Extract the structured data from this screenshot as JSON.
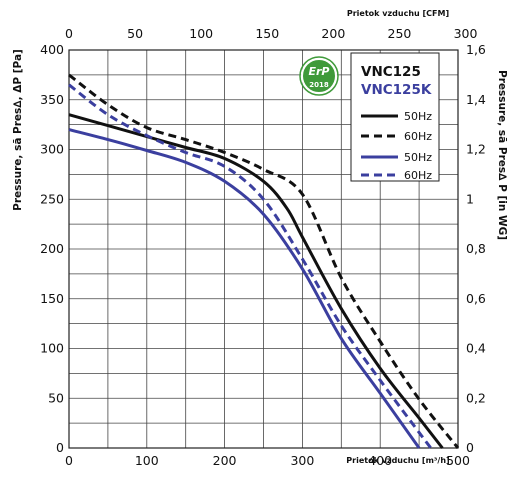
{
  "chart_data": {
    "type": "line",
    "title": "",
    "xlabel": "Prietok vzduchu [m³/h]",
    "xlabel_top": "Prietok vzduchu [CFM]",
    "ylabel_left": "Pressure, sā Pres∆, ΔP [Pa]",
    "ylabel_right": "Pressure, sā Pres∆ P [in WG]",
    "xlim": [
      0,
      500
    ],
    "ylim": [
      0,
      400
    ],
    "xticks": [
      "0",
      "100",
      "200",
      "300",
      "400",
      "500"
    ],
    "xticks_top": [
      "0",
      "50",
      "100",
      "150",
      "200",
      "250",
      "300"
    ],
    "yticks": [
      "0",
      "50",
      "100",
      "150",
      "200",
      "250",
      "300",
      "350",
      "400"
    ],
    "yticks_right": [
      "0",
      "0,2",
      "0,4",
      "0,6",
      "0,8",
      "1",
      "1,2",
      "1,4",
      "1,6"
    ],
    "grid": true,
    "models": [
      "VNC125",
      "VNC125K"
    ],
    "badge": {
      "line1": "ErP",
      "line2": "2018"
    },
    "series": [
      {
        "name": "50Hz",
        "group": "VNC125",
        "color": "#111111",
        "dash": "solid",
        "x": [
          0,
          50,
          100,
          150,
          200,
          250,
          280,
          300,
          350,
          400,
          450,
          480
        ],
        "y": [
          335,
          324,
          313,
          302,
          291,
          268,
          241,
          212,
          140,
          80,
          30,
          0
        ]
      },
      {
        "name": "60Hz",
        "group": "VNC125",
        "color": "#111111",
        "dash": "dashed",
        "x": [
          0,
          50,
          100,
          150,
          200,
          250,
          300,
          350,
          400,
          450,
          500
        ],
        "y": [
          375,
          345,
          322,
          310,
          297,
          280,
          255,
          171,
          107,
          49,
          0
        ]
      },
      {
        "name": "50Hz",
        "group": "VNC125K",
        "color": "#3b3f9f",
        "dash": "solid",
        "x": [
          0,
          50,
          100,
          150,
          200,
          250,
          300,
          350,
          400,
          450
        ],
        "y": [
          320,
          310,
          299,
          287,
          268,
          235,
          180,
          110,
          55,
          0
        ]
      },
      {
        "name": "60Hz",
        "group": "VNC125K",
        "color": "#3b3f9f",
        "dash": "dashed",
        "x": [
          0,
          50,
          100,
          150,
          200,
          250,
          300,
          350,
          400,
          465
        ],
        "y": [
          365,
          335,
          314,
          297,
          283,
          250,
          190,
          123,
          68,
          0
        ]
      }
    ]
  }
}
